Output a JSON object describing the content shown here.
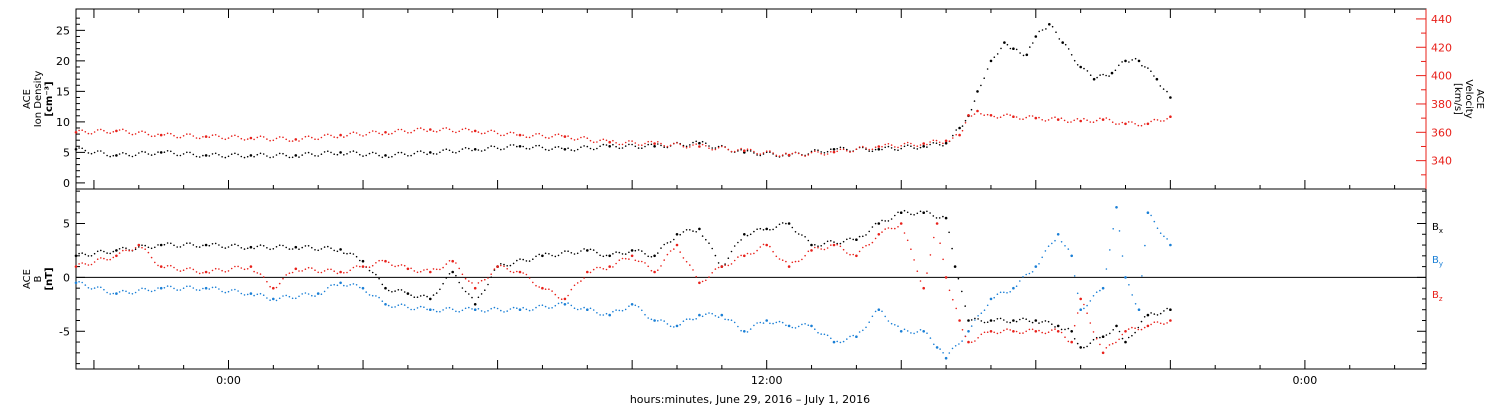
{
  "chart_data": [
    {
      "type": "scatter",
      "panel": "top",
      "ylabel": [
        "ACE",
        "Ion Density",
        "[cm⁻³]"
      ],
      "ylabel_right": [
        "ACE",
        "Velocity",
        "[km/s]"
      ],
      "x_tick_labels": [
        "0:00",
        "12:00",
        "0:00"
      ],
      "x_tick_hours": [
        0,
        12,
        24
      ],
      "xlim_hours": [
        -3.4,
        26.7
      ],
      "ylim": [
        -1,
        28.5
      ],
      "y_ticks": [
        0,
        5,
        10,
        15,
        20,
        25
      ],
      "ylim_right": [
        320,
        447
      ],
      "y_ticks_right": [
        340,
        360,
        380,
        400,
        420,
        440
      ],
      "series": [
        {
          "color": "#000000",
          "axis": "left",
          "x": [
            -3.4,
            -2.5,
            -1.5,
            -0.5,
            0.5,
            1.5,
            2.5,
            3.5,
            4.5,
            5.5,
            6.5,
            7.5,
            8.5,
            9.5,
            10.5,
            11.5,
            12.5,
            13.5,
            14.5,
            15.5,
            16,
            16.3,
            16.5,
            16.7,
            17,
            17.3,
            17.5,
            17.8,
            18,
            18.3,
            18.6,
            19,
            19.3,
            19.7,
            20,
            20.3,
            20.7,
            21
          ],
          "values": [
            5.5,
            4.5,
            5,
            4.5,
            4.5,
            4.5,
            5,
            4.5,
            5,
            5.5,
            6,
            5.5,
            6,
            6,
            6.5,
            5,
            4.5,
            5.5,
            5.5,
            6,
            6.5,
            9,
            11,
            15,
            20,
            23,
            22,
            21,
            24,
            26,
            23,
            19,
            17,
            18,
            20,
            20,
            17,
            14
          ]
        },
        {
          "color": "#e8201a",
          "axis": "right",
          "x": [
            -3.4,
            -2.5,
            -1.5,
            -0.5,
            0.5,
            1.5,
            2.5,
            3.5,
            4.5,
            5.5,
            6.5,
            7.5,
            8.5,
            9.5,
            10.5,
            11.5,
            12.5,
            13.5,
            14.5,
            15.5,
            16,
            16.3,
            16.5,
            16.7,
            17,
            17.5,
            18,
            18.5,
            19,
            19.5,
            20,
            20.5,
            21
          ],
          "values": [
            360,
            361,
            358,
            357,
            356,
            355,
            358,
            360,
            362,
            361,
            358,
            357,
            353,
            352,
            350,
            347,
            344,
            346,
            350,
            352,
            354,
            358,
            372,
            375,
            372,
            371,
            370,
            369,
            368,
            369,
            366,
            366,
            371
          ]
        }
      ]
    },
    {
      "type": "scatter",
      "panel": "bottom",
      "ylabel": [
        "ACE",
        "B",
        "[nT]"
      ],
      "x_tick_labels": [
        "0:00",
        "12:00",
        "0:00"
      ],
      "x_tick_hours": [
        0,
        12,
        24
      ],
      "xlim_hours": [
        -3.4,
        26.7
      ],
      "ylim": [
        -8.5,
        8.2
      ],
      "y_ticks": [
        -5,
        0,
        5
      ],
      "legend_position": "right",
      "series": [
        {
          "name": "Bₓ",
          "color": "#000000",
          "x": [
            -3.4,
            -2.5,
            -1.5,
            -0.5,
            0.5,
            1.5,
            2.5,
            3,
            3.5,
            4,
            4.5,
            5,
            5.5,
            6,
            7,
            8,
            8.5,
            9,
            9.5,
            10,
            10.5,
            11,
            11.5,
            12,
            12.5,
            13,
            14,
            14.5,
            15,
            15.5,
            16,
            16.2,
            16.5,
            17,
            17.5,
            18,
            18.5,
            18.8,
            19,
            19.5,
            19.8,
            20,
            20.5,
            21
          ],
          "values": [
            2,
            2.5,
            3,
            3,
            2.8,
            2.8,
            2.6,
            1.5,
            -1,
            -1.5,
            -2,
            0.5,
            -2.5,
            1,
            2,
            2.5,
            2,
            2.5,
            2,
            4,
            4.5,
            1,
            4,
            4.5,
            5,
            3,
            3.5,
            5,
            6,
            6,
            5.5,
            1,
            -4,
            -4,
            -4,
            -4,
            -4.5,
            -5,
            -6.5,
            -5.5,
            -4.5,
            -6,
            -3.5,
            -3
          ]
        },
        {
          "name": "Bᵧ",
          "color": "#1a7fd6",
          "x": [
            -3.4,
            -2.5,
            -1.5,
            -0.5,
            0.5,
            1,
            2,
            2.5,
            3,
            3.5,
            4.5,
            5.5,
            6.5,
            7.5,
            8,
            8.5,
            9,
            9.5,
            10,
            10.5,
            11,
            11.5,
            12,
            12.5,
            13,
            13.5,
            14,
            14.5,
            15,
            15.5,
            15.8,
            16,
            16.5,
            17,
            17.5,
            18,
            18.5,
            18.8,
            19,
            19.5,
            19.8,
            20,
            20.3,
            20.5,
            21
          ],
          "values": [
            -0.5,
            -1.5,
            -1,
            -1,
            -1.5,
            -2,
            -1.5,
            -0.5,
            -1,
            -2.5,
            -3,
            -3,
            -3,
            -2.5,
            -3,
            -3.5,
            -2.5,
            -4,
            -4.5,
            -3.5,
            -3.5,
            -5,
            -4,
            -4.5,
            -4.5,
            -6,
            -5.5,
            -3,
            -5,
            -5,
            -6.5,
            -7.5,
            -5,
            -2,
            -1,
            1,
            4,
            2,
            -3,
            -1,
            6.5,
            0,
            -3,
            6,
            3
          ]
        },
        {
          "name": "Bz",
          "color": "#e8201a",
          "x": [
            -3.4,
            -2.5,
            -2,
            -1.5,
            -0.5,
            0.5,
            1,
            1.5,
            2.5,
            3,
            3.5,
            4,
            4.5,
            5,
            5.5,
            6,
            6.5,
            7,
            7.5,
            8,
            8.5,
            9,
            9.5,
            10,
            10.5,
            11,
            11.5,
            12,
            12.5,
            13,
            13.5,
            14,
            14.5,
            15,
            15.5,
            15.8,
            16,
            16.3,
            16.5,
            17,
            17.5,
            18,
            18.5,
            18.8,
            19,
            19.5,
            20,
            20.5,
            21
          ],
          "values": [
            1,
            2,
            3,
            1,
            0.5,
            1,
            -1,
            0.8,
            0.5,
            1,
            1.5,
            0.8,
            0.5,
            1.5,
            -1,
            1,
            0.5,
            -1,
            -2,
            0.5,
            1,
            2,
            0.5,
            3,
            -0.5,
            1,
            2,
            3,
            1,
            2.5,
            3,
            2,
            4,
            5,
            -1,
            5,
            0,
            -4,
            -6,
            -5,
            -5,
            -5,
            -5,
            -6,
            -2,
            -7,
            -5,
            -4.5,
            -4
          ]
        }
      ]
    }
  ],
  "legend": {
    "bx_base": "B",
    "bx_sub": "x",
    "by_base": "B",
    "by_sub": "y",
    "bz_base": "B",
    "bz_sub": "z"
  },
  "xlabel": "hours:minutes, June 29, 2016 – July  1, 2016",
  "colors": {
    "velocity": "#e8201a",
    "bx": "#000000",
    "by": "#1a7fd6",
    "bz": "#e8201a"
  }
}
